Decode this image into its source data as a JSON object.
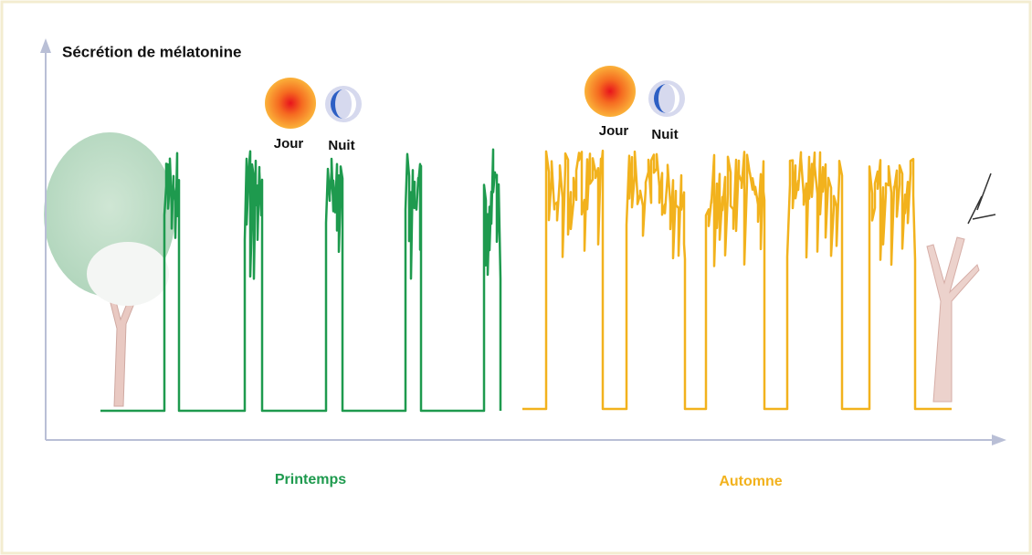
{
  "axis_label": "Sécrétion de mélatonine",
  "spring": {
    "day_label": "Jour",
    "night_label": "Nuit",
    "season": "Printemps"
  },
  "autumn": {
    "day_label": "Jour",
    "night_label": "Nuit",
    "season": "Automne"
  }
}
